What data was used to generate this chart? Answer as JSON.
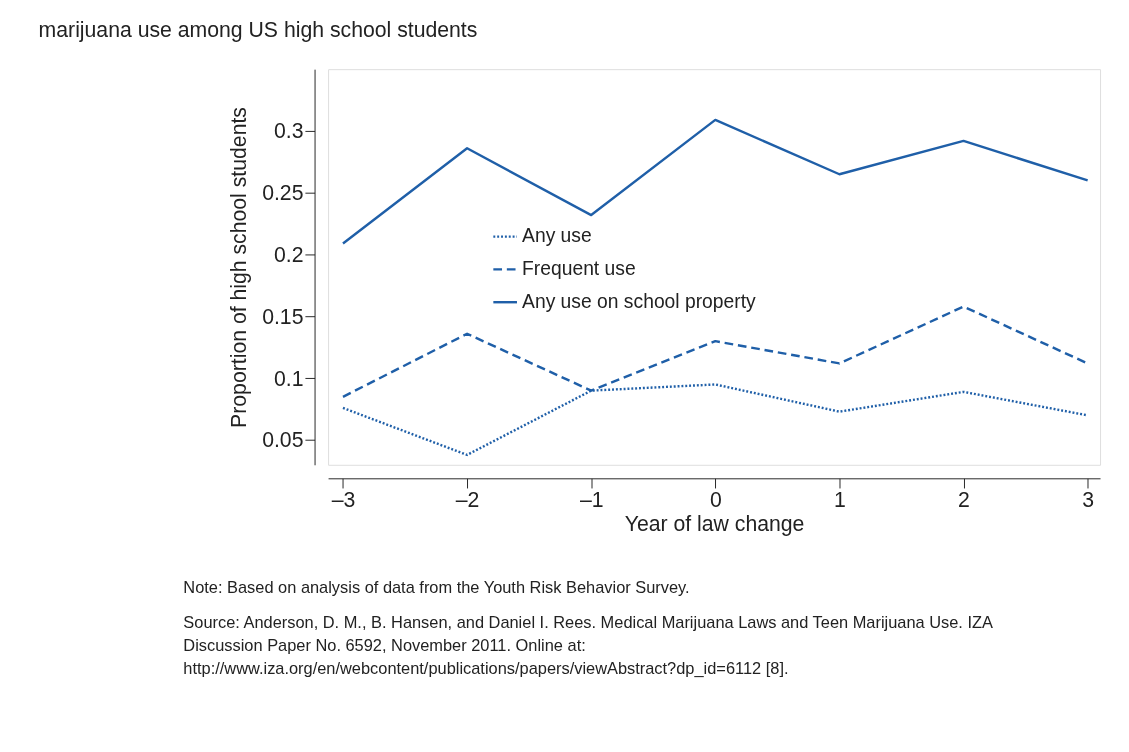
{
  "chart_data": {
    "type": "line",
    "title": "marijuana use among US high school students",
    "xlabel": "Year of law change",
    "ylabel": "Proportion of high school students",
    "x": [
      -3,
      -2,
      -1,
      0,
      1,
      2,
      3
    ],
    "series": [
      {
        "name": "Any use",
        "color": "#1f5fa8",
        "line_style": "dotted",
        "values": [
          0.076,
          0.038,
          0.09,
          0.095,
          0.073,
          0.089,
          0.07
        ]
      },
      {
        "name": "Frequent use",
        "color": "#1f5fa8",
        "line_style": "dashed",
        "values": [
          0.085,
          0.136,
          0.09,
          0.13,
          0.112,
          0.158,
          0.112
        ]
      },
      {
        "name": "Any use on school property",
        "color": "#1f5fa8",
        "line_style": "solid",
        "values": [
          0.209,
          0.286,
          0.232,
          0.309,
          0.265,
          0.292,
          0.26
        ]
      }
    ],
    "xlim": [
      -3.12,
      3.1
    ],
    "ylim": [
      0.03,
      0.35
    ],
    "xticks": [
      {
        "value": -3,
        "label": "–3"
      },
      {
        "value": -2,
        "label": "–2"
      },
      {
        "value": -1,
        "label": "–1"
      },
      0,
      1,
      2,
      3
    ],
    "yticks": [
      0.05,
      0.1,
      0.15,
      0.2,
      0.25,
      0.3
    ],
    "grid": false,
    "legend": "left",
    "marker": "none",
    "annotations": [
      "Note: Based on analysis of data from the Youth Risk Behavior Survey.",
      "Source: Anderson, D. M., B. Hansen, and Daniel I. Rees. Medical Marijuana Laws and Teen Marijuana Use. IZA Discussion Paper No. 6592, November 2011. Online at: http://www.iza.org/en/webcontent/publications/papers/viewAbstract?dp_id=6112 [8]."
    ]
  }
}
